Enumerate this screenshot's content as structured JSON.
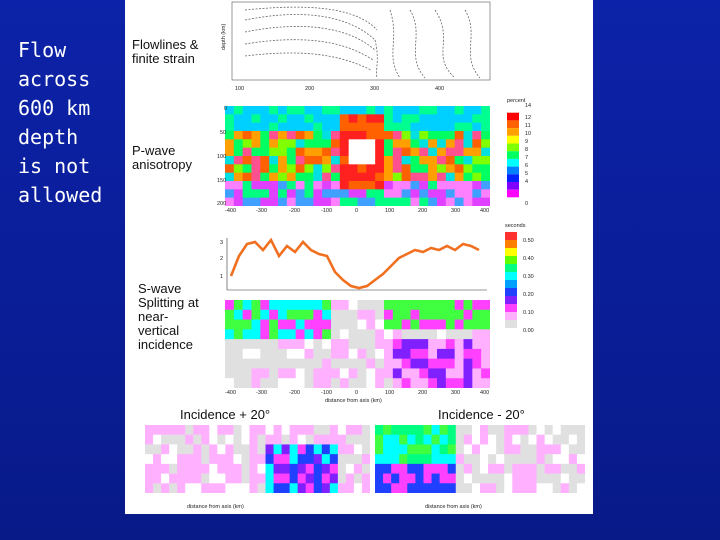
{
  "slide_title": [
    "Flow",
    "across",
    "600 km",
    "depth",
    "is not",
    "allowed"
  ],
  "labels": {
    "flowlines": "Flowlines & finite strain",
    "pwave": "P-wave anisotropy",
    "swave": "S-wave Splitting at near-vertical incidence",
    "inc_plus": "Incidence + 20°",
    "inc_minus": "Incidence - 20°"
  },
  "axes": {
    "depth_km": "depth (km)",
    "distance_from_axis": "distance from axis (km)",
    "seconds": "seconds",
    "percent": "percent",
    "x_ticks": [
      "-400",
      "-300",
      "-200",
      "-100",
      "0",
      "100",
      "200",
      "300",
      "400"
    ],
    "flow_x_ticks": [
      "100",
      "200",
      "300",
      "400"
    ]
  },
  "percent_scale": [
    "14",
    "12",
    "11",
    "10",
    "9",
    "8",
    "7",
    "6",
    "5",
    "4",
    "0"
  ],
  "seconds_scale": [
    "0.50",
    "0.40",
    "0.30",
    "0.20",
    "0.10",
    "0.00"
  ],
  "colors": {
    "background": "#0a1f9e",
    "splitting_line": "#f07020"
  }
}
